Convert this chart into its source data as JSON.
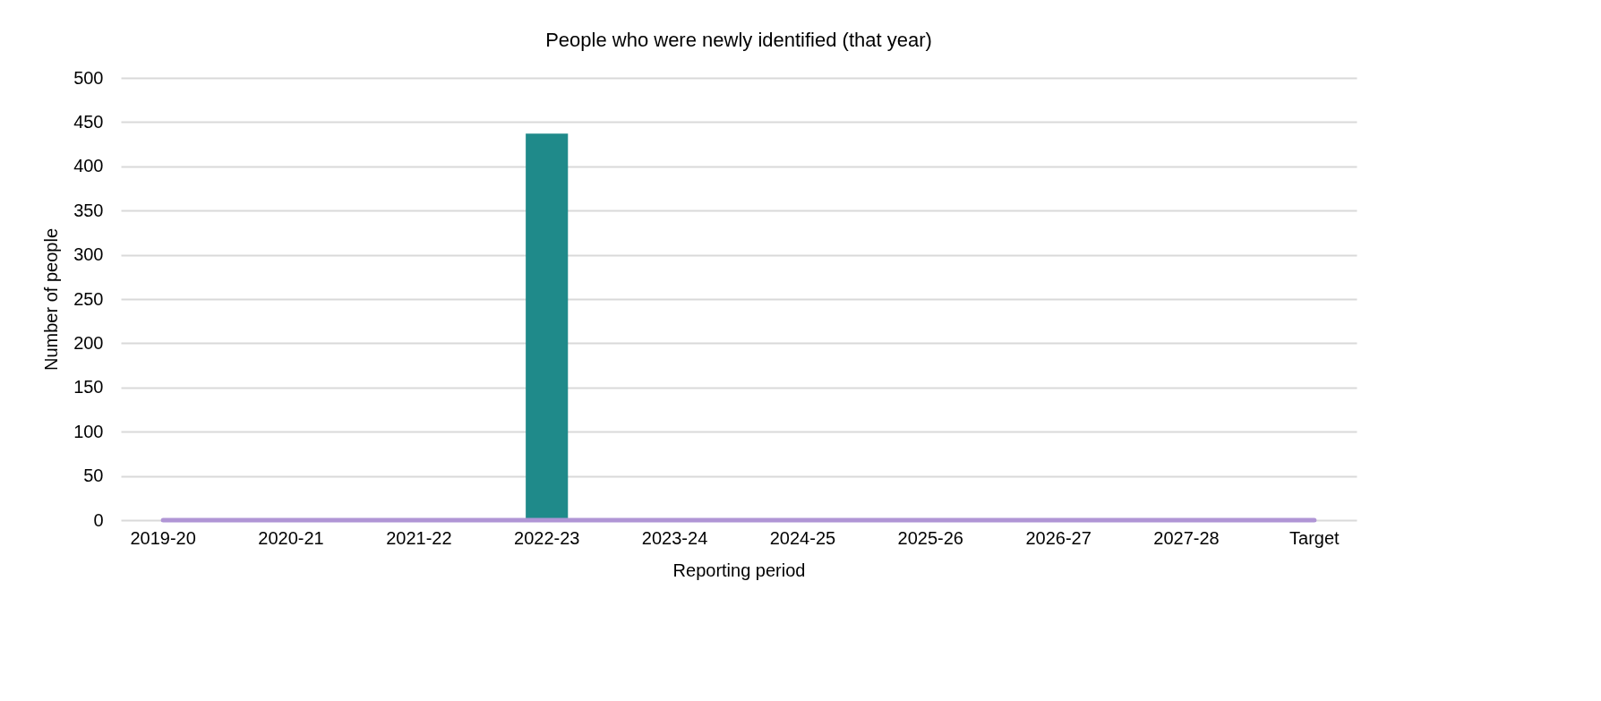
{
  "chart_data": {
    "type": "bar",
    "title": "People who were newly identified (that year)",
    "xlabel": "Reporting period",
    "ylabel": "Number of people",
    "categories": [
      "2019-20",
      "2020-21",
      "2021-22",
      "2022-23",
      "2023-24",
      "2024-25",
      "2025-26",
      "2026-27",
      "2027-28",
      "Target"
    ],
    "series": [
      {
        "color": "#1f8a8a",
        "values": [
          null,
          null,
          null,
          437,
          null,
          null,
          null,
          null,
          null,
          null
        ]
      },
      {
        "type": "line",
        "color": "#b095d5",
        "values": [
          0,
          0,
          0,
          0,
          0,
          0,
          0,
          0,
          0,
          0
        ]
      }
    ],
    "ylim": [
      0,
      500
    ],
    "yticks": [
      0,
      50,
      100,
      150,
      200,
      250,
      300,
      350,
      400,
      450,
      500
    ],
    "grid": "y"
  }
}
